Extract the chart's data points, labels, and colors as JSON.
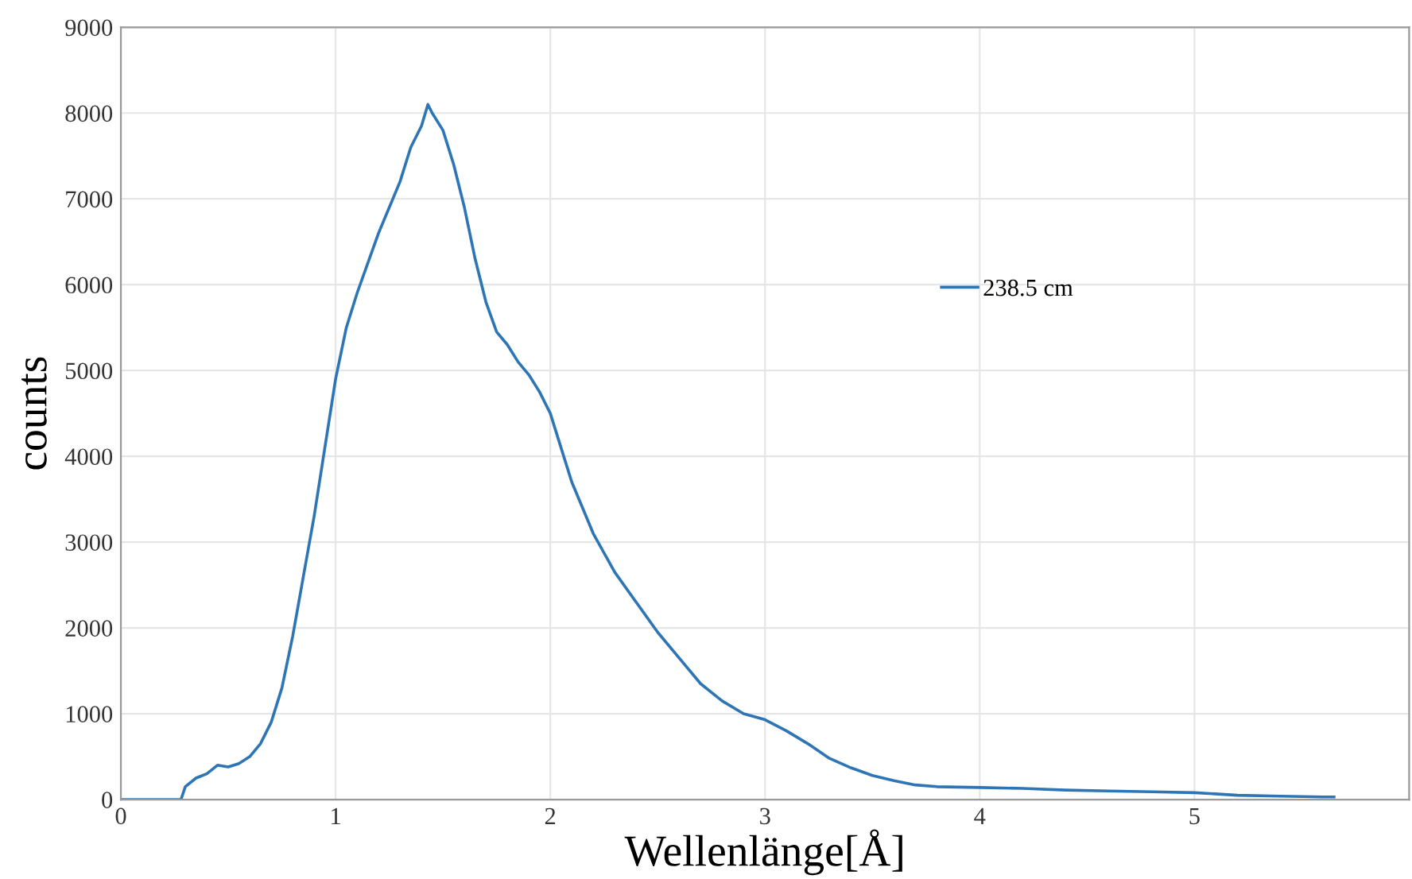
{
  "chart_data": {
    "type": "line",
    "xlabel": "Wellenlänge[Å]",
    "ylabel": "counts",
    "xlim": [
      0,
      6
    ],
    "xticks": [
      0,
      1,
      2,
      3,
      4,
      5,
      {
        "value": 6,
        "label": null
      }
    ],
    "ylim": [
      0,
      9000
    ],
    "yticks": [
      0,
      1000,
      2000,
      3000,
      4000,
      5000,
      6000,
      7000,
      8000,
      9000
    ],
    "grid": true,
    "legend": "right",
    "marker": "none",
    "line_style": "solid",
    "series": [
      {
        "name": "238.5 cm",
        "color": "#2e75b6",
        "x": [
          0,
          0.1,
          0.2,
          0.28,
          0.3,
          0.35,
          0.4,
          0.45,
          0.5,
          0.55,
          0.6,
          0.65,
          0.7,
          0.75,
          0.8,
          0.85,
          0.9,
          0.95,
          1.0,
          1.05,
          1.1,
          1.15,
          1.2,
          1.25,
          1.3,
          1.35,
          1.4,
          1.43,
          1.45,
          1.5,
          1.55,
          1.6,
          1.65,
          1.7,
          1.75,
          1.8,
          1.85,
          1.9,
          1.95,
          2.0,
          2.05,
          2.1,
          2.2,
          2.3,
          2.4,
          2.5,
          2.6,
          2.7,
          2.8,
          2.9,
          3.0,
          3.1,
          3.2,
          3.3,
          3.4,
          3.5,
          3.6,
          3.7,
          3.8,
          4.0,
          4.2,
          4.4,
          4.6,
          4.8,
          5.0,
          5.2,
          5.4,
          5.6,
          5.65
        ],
        "values": [
          0,
          0,
          0,
          0,
          150,
          250,
          300,
          400,
          380,
          420,
          500,
          650,
          900,
          1300,
          1900,
          2600,
          3300,
          4100,
          4900,
          5500,
          5900,
          6250,
          6600,
          6900,
          7200,
          7600,
          7850,
          8100,
          8000,
          7800,
          7400,
          6900,
          6300,
          5800,
          5450,
          5300,
          5100,
          4950,
          4750,
          4500,
          4100,
          3700,
          3100,
          2650,
          2300,
          1950,
          1650,
          1350,
          1150,
          1000,
          930,
          800,
          650,
          480,
          370,
          280,
          220,
          170,
          150,
          140,
          130,
          110,
          100,
          90,
          80,
          50,
          40,
          30,
          30
        ]
      }
    ]
  }
}
